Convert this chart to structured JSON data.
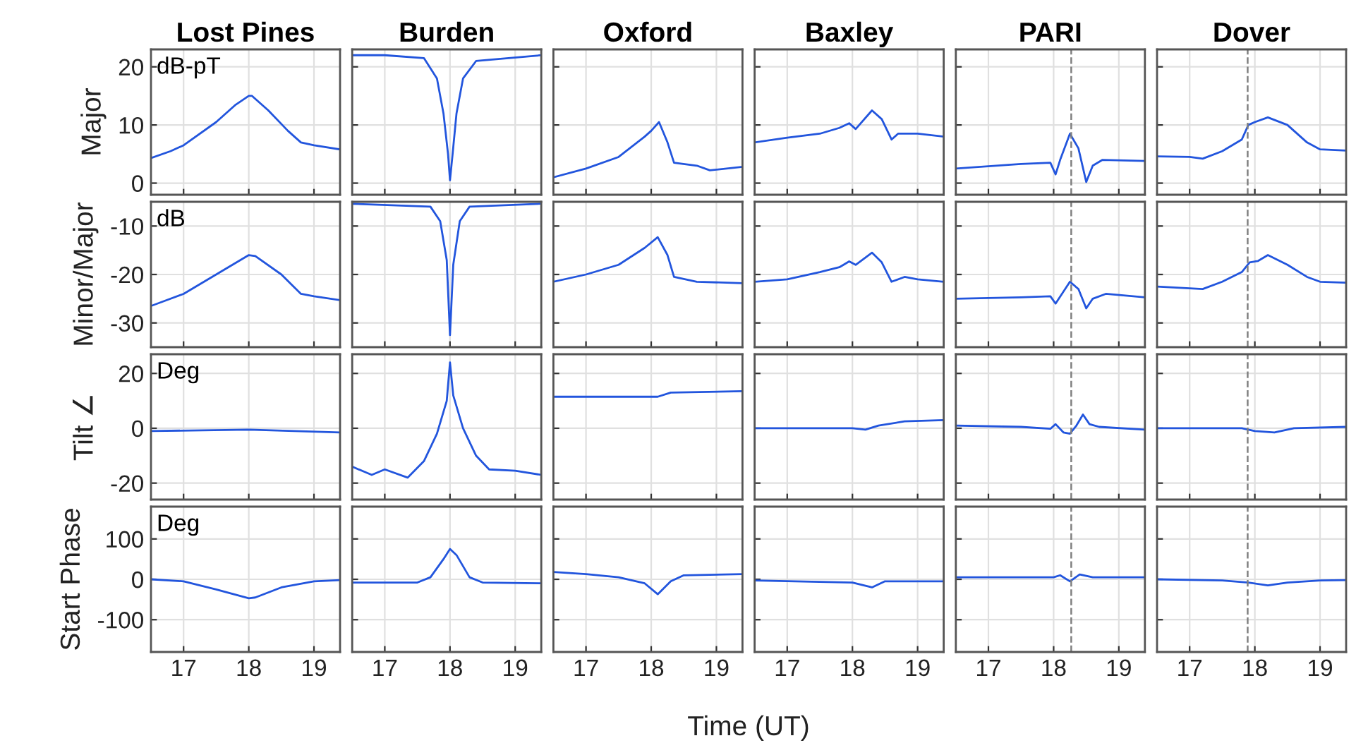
{
  "chart_data": [
    {
      "type": "line",
      "title": "Lost Pines",
      "ylabel": "Major",
      "annotations": [
        "dB-pT"
      ],
      "tick_labels": "y",
      "grid": true,
      "xlim": [
        16.5,
        19.4
      ],
      "xticks": [
        17,
        18,
        19
      ],
      "ylim": [
        -2,
        23
      ],
      "yticks": [
        0,
        10,
        20
      ],
      "color": "#2255dd",
      "x": [
        16.5,
        16.8,
        17.0,
        17.5,
        17.8,
        18.0,
        18.05,
        18.3,
        18.6,
        18.8,
        19.0,
        19.4
      ],
      "values": [
        4.3,
        5.5,
        6.5,
        10.5,
        13.5,
        15,
        15,
        12.5,
        9,
        7,
        6.5,
        5.8
      ]
    },
    {
      "type": "line",
      "title": "Burden",
      "tick_labels": false,
      "grid": true,
      "xlim": [
        16.5,
        19.4
      ],
      "xticks": [
        17,
        18,
        19
      ],
      "ylim": [
        -2,
        23
      ],
      "yticks": [
        0,
        10,
        20
      ],
      "color": "#2255dd",
      "x": [
        16.5,
        17.0,
        17.6,
        17.8,
        17.9,
        17.97,
        18.0,
        18.04,
        18.1,
        18.2,
        18.4,
        19.4
      ],
      "values": [
        22,
        22,
        21.5,
        18,
        12,
        5,
        0.5,
        5,
        12,
        18,
        21,
        22
      ]
    },
    {
      "type": "line",
      "title": "Oxford",
      "tick_labels": false,
      "grid": true,
      "xlim": [
        16.5,
        19.4
      ],
      "xticks": [
        17,
        18,
        19
      ],
      "ylim": [
        -2,
        23
      ],
      "yticks": [
        0,
        10,
        20
      ],
      "color": "#2255dd",
      "x": [
        16.5,
        17.0,
        17.5,
        17.9,
        18.0,
        18.12,
        18.25,
        18.35,
        18.7,
        18.9,
        19.4
      ],
      "values": [
        1,
        2.5,
        4.5,
        8,
        9,
        10.5,
        7,
        3.5,
        3,
        2.2,
        2.8
      ]
    },
    {
      "type": "line",
      "title": "Baxley",
      "tick_labels": false,
      "grid": true,
      "xlim": [
        16.5,
        19.4
      ],
      "xticks": [
        17,
        18,
        19
      ],
      "ylim": [
        -2,
        23
      ],
      "yticks": [
        0,
        10,
        20
      ],
      "color": "#2255dd",
      "x": [
        16.5,
        17.0,
        17.5,
        17.8,
        17.95,
        18.05,
        18.3,
        18.45,
        18.6,
        18.7,
        19.0,
        19.4
      ],
      "values": [
        7,
        7.8,
        8.5,
        9.5,
        10.3,
        9.3,
        12.5,
        11,
        7.5,
        8.5,
        8.5,
        8
      ]
    },
    {
      "type": "line",
      "title": "PARI",
      "tick_labels": false,
      "grid": true,
      "xlim": [
        16.5,
        19.4
      ],
      "xticks": [
        17,
        18,
        19
      ],
      "ylim": [
        -2,
        23
      ],
      "yticks": [
        0,
        10,
        20
      ],
      "color": "#2255dd",
      "ref_lines": [
        {
          "axis": "x",
          "value": 18.27,
          "color": "#808080",
          "line_style": "dashed"
        }
      ],
      "x": [
        16.5,
        17.5,
        17.95,
        18.03,
        18.1,
        18.25,
        18.38,
        18.5,
        18.6,
        18.75,
        19.4
      ],
      "values": [
        2.5,
        3.3,
        3.5,
        1.5,
        4,
        8.5,
        6,
        0.2,
        3,
        4,
        3.8
      ]
    },
    {
      "type": "line",
      "title": "Dover",
      "tick_labels": false,
      "grid": true,
      "xlim": [
        16.5,
        19.4
      ],
      "xticks": [
        17,
        18,
        19
      ],
      "ylim": [
        -2,
        23
      ],
      "yticks": [
        0,
        10,
        20
      ],
      "color": "#2255dd",
      "ref_lines": [
        {
          "axis": "x",
          "value": 17.89,
          "color": "#808080",
          "line_style": "dashed"
        }
      ],
      "x": [
        16.5,
        17.0,
        17.2,
        17.5,
        17.8,
        17.9,
        18.0,
        18.2,
        18.5,
        18.8,
        19.0,
        19.4
      ],
      "values": [
        4.6,
        4.5,
        4.2,
        5.5,
        7.5,
        10,
        10.5,
        11.3,
        10,
        7,
        5.8,
        5.6
      ]
    },
    {
      "type": "line",
      "ylabel": "Minor/Major",
      "annotations": [
        "dB"
      ],
      "tick_labels": "y",
      "grid": true,
      "xlim": [
        16.5,
        19.4
      ],
      "xticks": [
        17,
        18,
        19
      ],
      "ylim": [
        -35,
        -5
      ],
      "yticks": [
        -30,
        -20,
        -10
      ],
      "color": "#2255dd",
      "x": [
        16.5,
        17.0,
        17.5,
        18.0,
        18.1,
        18.5,
        18.8,
        19.0,
        19.4
      ],
      "values": [
        -26.5,
        -24,
        -20,
        -16,
        -16.2,
        -20,
        -24,
        -24.5,
        -25.3
      ]
    },
    {
      "type": "line",
      "tick_labels": false,
      "grid": true,
      "xlim": [
        16.5,
        19.4
      ],
      "xticks": [
        17,
        18,
        19
      ],
      "ylim": [
        -35,
        -5
      ],
      "yticks": [
        -30,
        -20,
        -10
      ],
      "color": "#2255dd",
      "x": [
        16.5,
        17.7,
        17.85,
        17.95,
        18.0,
        18.05,
        18.15,
        18.3,
        19.4
      ],
      "values": [
        -5.4,
        -6,
        -9,
        -17,
        -32.5,
        -18,
        -9,
        -6,
        -5.4
      ]
    },
    {
      "type": "line",
      "tick_labels": false,
      "grid": true,
      "xlim": [
        16.5,
        19.4
      ],
      "xticks": [
        17,
        18,
        19
      ],
      "ylim": [
        -35,
        -5
      ],
      "yticks": [
        -30,
        -20,
        -10
      ],
      "color": "#2255dd",
      "x": [
        16.5,
        17.0,
        17.5,
        17.9,
        18.1,
        18.25,
        18.35,
        18.7,
        19.4
      ],
      "values": [
        -21.5,
        -20,
        -18,
        -14.5,
        -12.3,
        -16,
        -20.5,
        -21.5,
        -21.8
      ]
    },
    {
      "type": "line",
      "tick_labels": false,
      "grid": true,
      "xlim": [
        16.5,
        19.4
      ],
      "xticks": [
        17,
        18,
        19
      ],
      "ylim": [
        -35,
        -5
      ],
      "yticks": [
        -30,
        -20,
        -10
      ],
      "color": "#2255dd",
      "x": [
        16.5,
        17.0,
        17.5,
        17.8,
        17.95,
        18.05,
        18.3,
        18.45,
        18.6,
        18.8,
        19.0,
        19.4
      ],
      "values": [
        -21.5,
        -21,
        -19.5,
        -18.5,
        -17.3,
        -18,
        -15.5,
        -17.5,
        -21.5,
        -20.5,
        -21,
        -21.5
      ]
    },
    {
      "type": "line",
      "tick_labels": false,
      "grid": true,
      "xlim": [
        16.5,
        19.4
      ],
      "xticks": [
        17,
        18,
        19
      ],
      "ylim": [
        -35,
        -5
      ],
      "yticks": [
        -30,
        -20,
        -10
      ],
      "color": "#2255dd",
      "ref_lines": [
        {
          "axis": "x",
          "value": 18.27,
          "color": "#808080",
          "line_style": "dashed"
        }
      ],
      "x": [
        16.5,
        17.5,
        17.95,
        18.03,
        18.25,
        18.38,
        18.5,
        18.6,
        18.8,
        19.4
      ],
      "values": [
        -25,
        -24.7,
        -24.5,
        -26,
        -21.5,
        -23,
        -27,
        -25,
        -24,
        -24.7
      ]
    },
    {
      "type": "line",
      "tick_labels": false,
      "grid": true,
      "xlim": [
        16.5,
        19.4
      ],
      "xticks": [
        17,
        18,
        19
      ],
      "ylim": [
        -35,
        -5
      ],
      "yticks": [
        -30,
        -20,
        -10
      ],
      "color": "#2255dd",
      "ref_lines": [
        {
          "axis": "x",
          "value": 17.89,
          "color": "#808080",
          "line_style": "dashed"
        }
      ],
      "x": [
        16.5,
        17.2,
        17.5,
        17.8,
        17.92,
        18.05,
        18.2,
        18.5,
        18.8,
        19.0,
        19.4
      ],
      "values": [
        -22.5,
        -23,
        -21.5,
        -19.5,
        -17.5,
        -17.2,
        -16,
        -18,
        -20.5,
        -21.5,
        -21.7
      ]
    },
    {
      "type": "line",
      "ylabel": "Tilt ∠",
      "annotations": [
        "Deg"
      ],
      "tick_labels": "y",
      "grid": true,
      "xlim": [
        16.5,
        19.4
      ],
      "xticks": [
        17,
        18,
        19
      ],
      "ylim": [
        -26,
        27
      ],
      "yticks": [
        -20,
        0,
        20
      ],
      "color": "#2255dd",
      "x": [
        16.5,
        18.0,
        19.4
      ],
      "values": [
        -1,
        -0.5,
        -1.5
      ]
    },
    {
      "type": "line",
      "tick_labels": false,
      "grid": true,
      "xlim": [
        16.5,
        19.4
      ],
      "xticks": [
        17,
        18,
        19
      ],
      "ylim": [
        -26,
        27
      ],
      "yticks": [
        -20,
        0,
        20
      ],
      "color": "#2255dd",
      "x": [
        16.5,
        16.8,
        17.0,
        17.35,
        17.6,
        17.8,
        17.95,
        18.0,
        18.05,
        18.2,
        18.4,
        18.6,
        19.0,
        19.4
      ],
      "values": [
        -14,
        -17,
        -15,
        -18,
        -12,
        -2,
        10,
        24,
        12,
        0,
        -10,
        -15,
        -15.5,
        -17
      ]
    },
    {
      "type": "line",
      "tick_labels": false,
      "grid": true,
      "xlim": [
        16.5,
        19.4
      ],
      "xticks": [
        17,
        18,
        19
      ],
      "ylim": [
        -26,
        27
      ],
      "yticks": [
        -20,
        0,
        20
      ],
      "color": "#2255dd",
      "x": [
        16.5,
        18.1,
        18.3,
        19.4
      ],
      "values": [
        11.5,
        11.5,
        13,
        13.5
      ]
    },
    {
      "type": "line",
      "tick_labels": false,
      "grid": true,
      "xlim": [
        16.5,
        19.4
      ],
      "xticks": [
        17,
        18,
        19
      ],
      "ylim": [
        -26,
        27
      ],
      "yticks": [
        -20,
        0,
        20
      ],
      "color": "#2255dd",
      "x": [
        16.5,
        18.0,
        18.2,
        18.4,
        18.8,
        19.4
      ],
      "values": [
        0,
        0,
        -0.5,
        1,
        2.5,
        3
      ]
    },
    {
      "type": "line",
      "tick_labels": false,
      "grid": true,
      "xlim": [
        16.5,
        19.4
      ],
      "xticks": [
        17,
        18,
        19
      ],
      "ylim": [
        -26,
        27
      ],
      "yticks": [
        -20,
        0,
        20
      ],
      "color": "#2255dd",
      "ref_lines": [
        {
          "axis": "x",
          "value": 18.27,
          "color": "#808080",
          "line_style": "dashed"
        }
      ],
      "x": [
        16.5,
        17.5,
        17.95,
        18.03,
        18.15,
        18.25,
        18.35,
        18.45,
        18.55,
        18.7,
        19.4
      ],
      "values": [
        1,
        0.5,
        -0.2,
        1.5,
        -1.5,
        -2,
        1,
        5,
        1.5,
        0.5,
        -0.5
      ]
    },
    {
      "type": "line",
      "tick_labels": false,
      "grid": true,
      "xlim": [
        16.5,
        19.4
      ],
      "xticks": [
        17,
        18,
        19
      ],
      "ylim": [
        -26,
        27
      ],
      "yticks": [
        -20,
        0,
        20
      ],
      "color": "#2255dd",
      "ref_lines": [
        {
          "axis": "x",
          "value": 17.89,
          "color": "#808080",
          "line_style": "dashed"
        }
      ],
      "x": [
        16.5,
        17.8,
        18.0,
        18.3,
        18.6,
        19.4
      ],
      "values": [
        0,
        0,
        -1,
        -1.5,
        0,
        0.5
      ]
    },
    {
      "type": "line",
      "ylabel": "Start Phase",
      "annotations": [
        "Deg"
      ],
      "grid": true,
      "xlim": [
        16.5,
        19.4
      ],
      "xticks": [
        17,
        18,
        19
      ],
      "ylim": [
        -180,
        180
      ],
      "yticks": [
        -100,
        0,
        100
      ],
      "color": "#2255dd",
      "x": [
        16.5,
        17.0,
        17.5,
        18.0,
        18.1,
        18.5,
        19.0,
        19.4
      ],
      "values": [
        0,
        -5,
        -25,
        -47,
        -45,
        -20,
        -5,
        -2
      ]
    },
    {
      "type": "line",
      "tick_labels": "x",
      "grid": true,
      "xlim": [
        16.5,
        19.4
      ],
      "xticks": [
        17,
        18,
        19
      ],
      "ylim": [
        -180,
        180
      ],
      "yticks": [
        -100,
        0,
        100
      ],
      "color": "#2255dd",
      "x": [
        16.5,
        17.5,
        17.7,
        17.9,
        18.0,
        18.1,
        18.3,
        18.5,
        19.4
      ],
      "values": [
        -8,
        -8,
        5,
        50,
        75,
        60,
        5,
        -8,
        -10
      ]
    },
    {
      "type": "line",
      "tick_labels": "x",
      "grid": true,
      "xlim": [
        16.5,
        19.4
      ],
      "xticks": [
        17,
        18,
        19
      ],
      "ylim": [
        -180,
        180
      ],
      "yticks": [
        -100,
        0,
        100
      ],
      "color": "#2255dd",
      "x": [
        16.5,
        17.0,
        17.5,
        17.9,
        18.1,
        18.3,
        18.5,
        19.4
      ],
      "values": [
        18,
        13,
        5,
        -10,
        -37,
        -5,
        10,
        13
      ]
    },
    {
      "type": "line",
      "tick_labels": "x",
      "xlabel": "Time (UT)",
      "grid": true,
      "xlim": [
        16.5,
        19.4
      ],
      "xticks": [
        17,
        18,
        19
      ],
      "ylim": [
        -180,
        180
      ],
      "yticks": [
        -100,
        0,
        100
      ],
      "color": "#2255dd",
      "x": [
        16.5,
        18.0,
        18.3,
        18.5,
        19.4
      ],
      "values": [
        -3,
        -8,
        -20,
        -5,
        -5
      ]
    },
    {
      "type": "line",
      "tick_labels": "x",
      "grid": true,
      "xlim": [
        16.5,
        19.4
      ],
      "xticks": [
        17,
        18,
        19
      ],
      "ylim": [
        -180,
        180
      ],
      "yticks": [
        -100,
        0,
        100
      ],
      "color": "#2255dd",
      "ref_lines": [
        {
          "axis": "x",
          "value": 18.27,
          "color": "#808080",
          "line_style": "dashed"
        }
      ],
      "x": [
        16.5,
        18.0,
        18.1,
        18.25,
        18.4,
        18.6,
        19.4
      ],
      "values": [
        5,
        5,
        10,
        -5,
        12,
        5,
        5
      ]
    },
    {
      "type": "line",
      "tick_labels": "x",
      "grid": true,
      "xlim": [
        16.5,
        19.4
      ],
      "xticks": [
        17,
        18,
        19
      ],
      "ylim": [
        -180,
        180
      ],
      "yticks": [
        -100,
        0,
        100
      ],
      "color": "#2255dd",
      "ref_lines": [
        {
          "axis": "x",
          "value": 17.89,
          "color": "#808080",
          "line_style": "dashed"
        }
      ],
      "x": [
        16.5,
        17.5,
        17.9,
        18.2,
        18.5,
        19.0,
        19.4
      ],
      "values": [
        0,
        -3,
        -8,
        -15,
        -8,
        -3,
        -2
      ]
    }
  ]
}
